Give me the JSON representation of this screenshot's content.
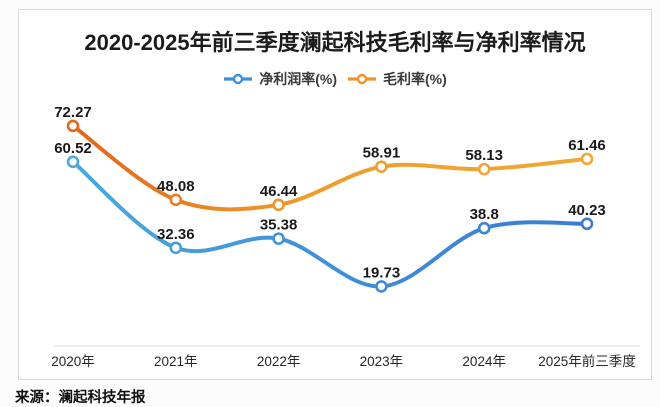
{
  "page": {
    "source_note": "来源：澜起科技年报"
  },
  "chart_data": {
    "type": "line",
    "title": "2020-2025年前三季度澜起科技毛利率与净利率情况",
    "categories": [
      "2020年",
      "2021年",
      "2022年",
      "2023年",
      "2024年",
      "2025年前三季度"
    ],
    "series": [
      {
        "name": "净利润率(%)",
        "values": [
          60.52,
          32.36,
          35.38,
          19.73,
          38.8,
          40.23
        ],
        "value_labels": [
          "60.52",
          "32.36",
          "35.38",
          "19.73",
          "38.8",
          "40.23"
        ],
        "color_start": "#4BAAD9",
        "color_mid": "#3F92D8",
        "color_end": "#3B7CD3",
        "legend_color": "#3E8ED8"
      },
      {
        "name": "毛利率(%)",
        "values": [
          72.27,
          48.08,
          46.44,
          58.91,
          58.13,
          61.46
        ],
        "value_labels": [
          "72.27",
          "48.08",
          "46.44",
          "58.91",
          "58.13",
          "61.46"
        ],
        "color_start": "#E2661A",
        "color_mid": "#EF9C2C",
        "color_end": "#F1A834",
        "legend_color": "#F0932B"
      }
    ],
    "ylim": [
      0,
      82
    ],
    "y_axis_visible": false,
    "grid": false,
    "legend_position": "top",
    "value_label_color": "#1a1a1a",
    "axis_line_color": "#d9d9de",
    "tick_label_color": "#26262e",
    "title_color": "#1c1c1c",
    "marker_fill": "#ffffff"
  }
}
